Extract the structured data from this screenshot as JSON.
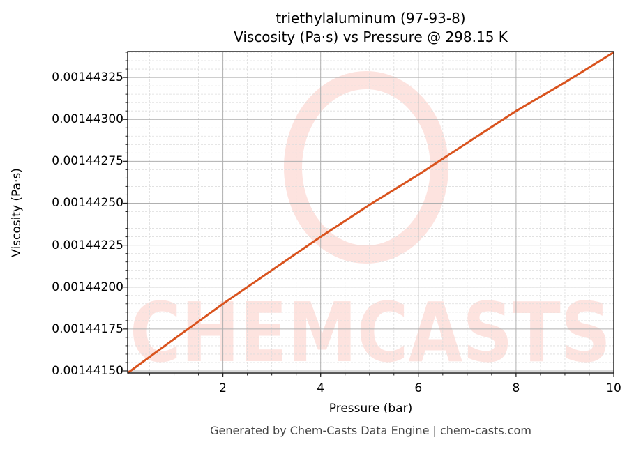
{
  "title": {
    "line1": "triethylaluminum (97-93-8)",
    "line2": "Viscosity (Pa·s) vs Pressure @ 298.15 K"
  },
  "axes": {
    "xlabel": "Pressure (bar)",
    "ylabel": "Viscosity (Pa·s)"
  },
  "footer": "Generated by Chem-Casts Data Engine | chem-casts.com",
  "watermark": "CHEMCASTS",
  "colors": {
    "line": "#d9531e",
    "watermark": "#fde3df",
    "grid_major": "#b0b0b0",
    "grid_minor": "#dddddd",
    "axis": "#222222"
  },
  "chart_data": {
    "type": "line",
    "title": "triethylaluminum (97-93-8) Viscosity (Pa·s) vs Pressure @ 298.15 K",
    "xlabel": "Pressure (bar)",
    "ylabel": "Viscosity (Pa·s)",
    "xlim": [
      0.05,
      10
    ],
    "ylim": [
      0.0014414875,
      0.0014434042
    ],
    "xticks": [
      2,
      4,
      6,
      8,
      10
    ],
    "xtick_labels": [
      "2",
      "4",
      "6",
      "8",
      "10"
    ],
    "yticks": [
      0.0014415,
      0.00144175,
      0.001442,
      0.00144225,
      0.0014425,
      0.00144275,
      0.001443,
      0.00144325
    ],
    "ytick_labels": [
      "0.00144150",
      "0.00144175",
      "0.00144200",
      "0.00144225",
      "0.00144250",
      "0.00144275",
      "0.00144300",
      "0.00144325"
    ],
    "grid": true,
    "minor_grid": true,
    "legend": null,
    "series": [
      {
        "name": "Viscosity",
        "x": [
          0.05,
          1,
          2,
          3,
          4,
          5,
          6,
          7,
          8,
          9,
          10
        ],
        "y": [
          0.0014414875,
          0.00144169,
          0.0014419,
          0.0014421,
          0.0014423,
          0.00144249,
          0.00144267,
          0.00144286,
          0.00144305,
          0.00144322,
          0.0014434
        ]
      }
    ]
  }
}
